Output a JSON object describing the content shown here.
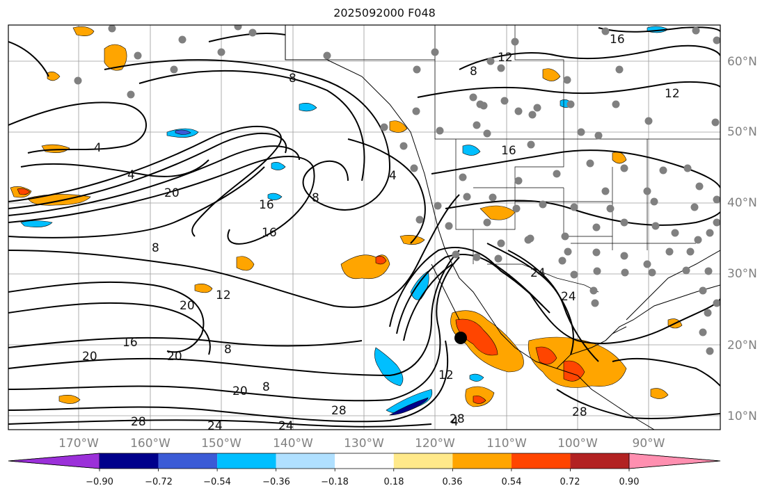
{
  "title": "2025092000 F048",
  "lon_ticks": [
    "170°W",
    "160°W",
    "150°W",
    "140°W",
    "130°W",
    "120°W",
    "110°W",
    "100°W",
    "90°W"
  ],
  "lat_ticks": [
    "60°N",
    "50°N",
    "40°N",
    "30°N",
    "20°N",
    "10°N"
  ],
  "colorbar": {
    "colors": [
      "#9b30d9",
      "#00008b",
      "#3b5bd6",
      "#00bfff",
      "#b0e0ff",
      "#ffffff",
      "#ffe98a",
      "#ffa500",
      "#ff4500",
      "#b22222",
      "#ff8fb0"
    ],
    "labels": [
      "−0.90",
      "−0.72",
      "−0.54",
      "−0.36",
      "−0.18",
      "0.18",
      "0.36",
      "0.54",
      "0.72",
      "0.90"
    ]
  },
  "contour_labels": [
    "4",
    "4",
    "4",
    "4",
    "8",
    "8",
    "8",
    "8",
    "8",
    "8",
    "12",
    "12",
    "12",
    "12",
    "16",
    "16",
    "16",
    "16",
    "16",
    "20",
    "20",
    "20",
    "20",
    "20",
    "24",
    "24",
    "24",
    "24",
    "28",
    "28",
    "28",
    "28"
  ],
  "colors": {
    "contour": "#000000",
    "positive": "#ffa500",
    "negative": "#00bfff",
    "station": "#808080"
  }
}
